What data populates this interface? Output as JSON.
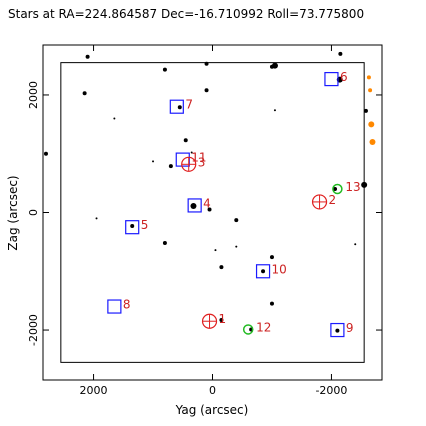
{
  "chart_data": {
    "type": "scatter",
    "title": "Stars at RA=224.864587 Dec=-16.710992 Roll=73.775800",
    "xlabel": "Yag (arcsec)",
    "ylabel": "Zag (arcsec)",
    "xlim": [
      2850,
      -2850
    ],
    "ylim": [
      -2850,
      2850
    ],
    "xticks": [
      -2000,
      0,
      2000
    ],
    "yticks": [
      -2000,
      0,
      2000
    ],
    "ccd_box": {
      "y_min": -2550,
      "y_max": 2550,
      "z_min": -2550,
      "z_max": 2550
    },
    "stars": [
      {
        "y": -2150,
        "z": 2700,
        "r": 2
      },
      {
        "y": -1050,
        "z": 2500,
        "r": 3
      },
      {
        "y": -1000,
        "z": 2480,
        "r": 2
      },
      {
        "y": 100,
        "z": 2530,
        "r": 2
      },
      {
        "y": 800,
        "z": 2430,
        "r": 2
      },
      {
        "y": 2100,
        "z": 2650,
        "r": 2
      },
      {
        "y": -2140,
        "z": 2260,
        "r": 3
      },
      {
        "y": 100,
        "z": 2080,
        "r": 2
      },
      {
        "y": 2150,
        "z": 2030,
        "r": 2
      },
      {
        "y": -2580,
        "z": 1730,
        "r": 2
      },
      {
        "y": -1050,
        "z": 1740,
        "r": 1
      },
      {
        "y": 550,
        "z": 1790,
        "r": 2
      },
      {
        "y": 1650,
        "z": 1600,
        "r": 1
      },
      {
        "y": 450,
        "z": 1230,
        "r": 2
      },
      {
        "y": 350,
        "z": 1020,
        "r": 1
      },
      {
        "y": 2800,
        "z": 1000,
        "r": 2
      },
      {
        "y": 1000,
        "z": 870,
        "r": 1
      },
      {
        "y": 700,
        "z": 790,
        "r": 2
      },
      {
        "y": -2550,
        "z": 470,
        "r": 3
      },
      {
        "y": -2060,
        "z": 400,
        "r": 2
      },
      {
        "y": 50,
        "z": 50,
        "r": 2
      },
      {
        "y": 320,
        "z": 110,
        "r": 3
      },
      {
        "y": -400,
        "z": -130,
        "r": 2
      },
      {
        "y": 1350,
        "z": -230,
        "r": 2
      },
      {
        "y": 1950,
        "z": -100,
        "r": 1
      },
      {
        "y": -2400,
        "z": -540,
        "r": 1
      },
      {
        "y": -400,
        "z": -580,
        "r": 1
      },
      {
        "y": -50,
        "z": -640,
        "r": 1
      },
      {
        "y": 800,
        "z": -520,
        "r": 2
      },
      {
        "y": -1000,
        "z": -760,
        "r": 2
      },
      {
        "y": -150,
        "z": -930,
        "r": 2
      },
      {
        "y": -850,
        "z": -1000,
        "r": 2
      },
      {
        "y": -1000,
        "z": -1550,
        "r": 2
      },
      {
        "y": -2100,
        "z": -2010,
        "r": 2
      },
      {
        "y": -650,
        "z": -1990,
        "r": 2
      },
      {
        "y": -150,
        "z": -1830,
        "r": 2
      }
    ],
    "guide_markers": [
      {
        "y": -2000,
        "z": 2270,
        "label": "6"
      },
      {
        "y": 600,
        "z": 1800,
        "label": "7"
      },
      {
        "y": 500,
        "z": 900,
        "label": "11"
      },
      {
        "y": 300,
        "z": 120,
        "label": "4"
      },
      {
        "y": 1350,
        "z": -250,
        "label": "5"
      },
      {
        "y": -850,
        "z": -1000,
        "label": "10"
      },
      {
        "y": 1650,
        "z": -1600,
        "label": "8"
      },
      {
        "y": -2100,
        "z": -2000,
        "label": "9"
      }
    ],
    "acq_markers": [
      {
        "y": -2100,
        "z": 400,
        "label": "13"
      },
      {
        "y": -600,
        "z": -1990,
        "label": "12"
      }
    ],
    "fid_markers": [
      {
        "y": -1800,
        "z": 180,
        "label": "2"
      },
      {
        "y": 50,
        "z": -1850,
        "label": "1"
      },
      {
        "y": 400,
        "z": 820,
        "label": "3"
      }
    ],
    "side_dots": [
      {
        "y": -2630,
        "z": 2300,
        "r": 2
      },
      {
        "y": -2650,
        "z": 2080,
        "r": 2
      },
      {
        "y": -2670,
        "z": 1500,
        "r": 3
      },
      {
        "y": -2690,
        "z": 1200,
        "r": 3
      }
    ],
    "colors": {
      "guide": "#1a1aff",
      "acq": "#22bb22",
      "fid": "#e02020",
      "label": "#cc2222",
      "side": "#ff8800",
      "star": "#000000"
    }
  }
}
